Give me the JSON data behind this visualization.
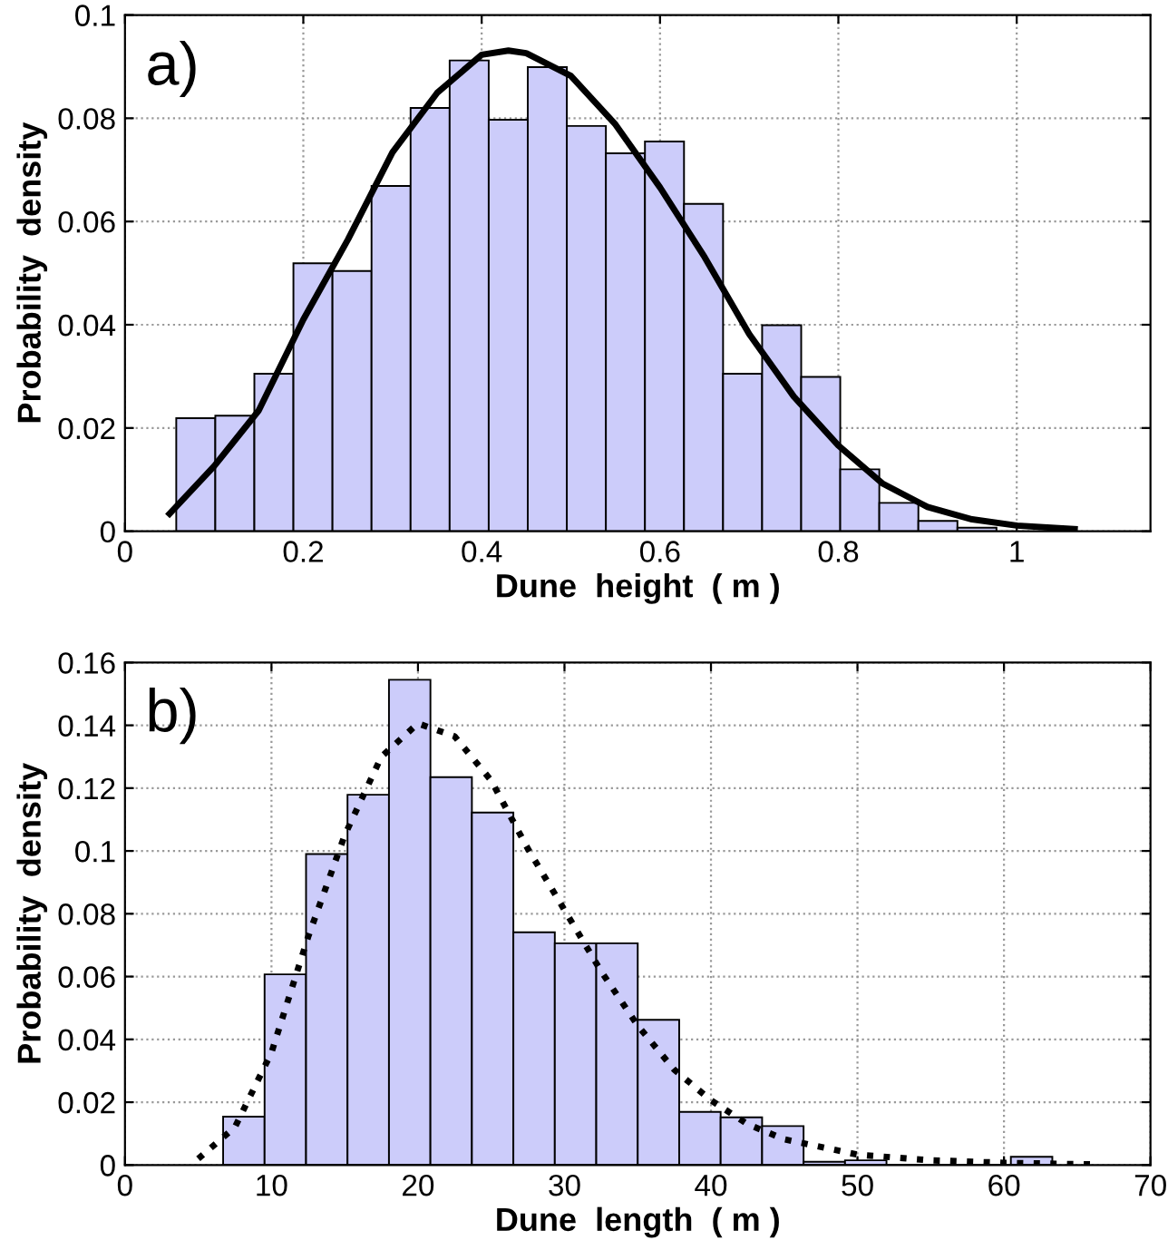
{
  "chart_data": [
    {
      "type": "histogram",
      "xlabel": "Dune  height  ( m )",
      "ylabel": "Probability  density",
      "annotations": [
        "a)"
      ],
      "xlim": [
        0,
        1.15
      ],
      "xticks": [
        0,
        0.2,
        0.4,
        0.6,
        0.8,
        1
      ],
      "ylim": [
        0,
        0.1
      ],
      "yticks": [
        0,
        0.02,
        0.04,
        0.06,
        0.08,
        0.1
      ],
      "grid": true,
      "series": [
        {
          "color": "#ccccfa",
          "bins": [
            0.0575,
            0.1013,
            0.1451,
            0.1889,
            0.2327,
            0.2765,
            0.3203,
            0.3641,
            0.4079,
            0.4517,
            0.4955,
            0.5393,
            0.5831,
            0.6269,
            0.6707,
            0.7145,
            0.7583,
            0.8021,
            0.8459,
            0.8897,
            0.9335,
            0.9773
          ],
          "values": [
            0.0219,
            0.0224,
            0.0305,
            0.0519,
            0.0504,
            0.0669,
            0.082,
            0.0912,
            0.0797,
            0.0899,
            0.0785,
            0.0732,
            0.0755,
            0.0634,
            0.0305,
            0.0399,
            0.0299,
            0.012,
            0.0055,
            0.002,
            0.0007
          ]
        },
        {
          "type": "line",
          "color": "#000000",
          "line_style": "solid",
          "x": [
            0.05,
            0.1,
            0.15,
            0.2,
            0.25,
            0.3,
            0.35,
            0.4,
            0.43,
            0.45,
            0.5,
            0.55,
            0.6,
            0.65,
            0.7,
            0.75,
            0.8,
            0.85,
            0.9,
            0.95,
            1.0,
            1.065
          ],
          "values": [
            0.0034,
            0.0126,
            0.0234,
            0.041,
            0.0565,
            0.0734,
            0.0849,
            0.0923,
            0.0931,
            0.0926,
            0.0882,
            0.0788,
            0.0666,
            0.0531,
            0.0382,
            0.0261,
            0.0166,
            0.0092,
            0.0047,
            0.0023,
            0.0011,
            0.0004
          ]
        }
      ]
    },
    {
      "type": "histogram",
      "xlabel": "Dune  length  ( m )",
      "ylabel": "Probability  density",
      "annotations": [
        "b)"
      ],
      "xlim": [
        0,
        70
      ],
      "xticks": [
        0,
        10,
        20,
        30,
        40,
        50,
        60,
        70
      ],
      "ylim": [
        0,
        0.16
      ],
      "yticks": [
        0,
        0.02,
        0.04,
        0.06,
        0.08,
        0.1,
        0.12,
        0.14,
        0.16
      ],
      "grid": true,
      "series": [
        {
          "color": "#ccccfa",
          "bins": [
            6.7,
            9.53,
            12.36,
            15.19,
            18.02,
            20.85,
            23.68,
            26.51,
            29.34,
            32.17,
            35.0,
            37.83,
            40.66,
            43.49,
            46.32,
            49.15,
            51.98,
            54.81,
            57.64,
            60.47,
            63.3
          ],
          "values": [
            0.0154,
            0.0607,
            0.099,
            0.1179,
            0.1545,
            0.1235,
            0.1122,
            0.0741,
            0.0706,
            0.0706,
            0.0462,
            0.0169,
            0.0152,
            0.0124,
            0.001,
            0.0015,
            0,
            0,
            0,
            0.0026
          ]
        },
        {
          "type": "line",
          "color": "#000000",
          "line_style": "dotted",
          "x": [
            5,
            7.5,
            10,
            12.5,
            15,
            17.5,
            20,
            22.5,
            25,
            27.5,
            30,
            32.5,
            35,
            37.5,
            40,
            42.5,
            45,
            50,
            55,
            60,
            66
          ],
          "values": [
            0.002,
            0.012,
            0.0358,
            0.0726,
            0.105,
            0.13,
            0.1406,
            0.1365,
            0.1224,
            0.1007,
            0.0812,
            0.0617,
            0.0444,
            0.0303,
            0.0206,
            0.013,
            0.0082,
            0.0033,
            0.0015,
            0.0007,
            0.0002
          ]
        }
      ]
    }
  ]
}
